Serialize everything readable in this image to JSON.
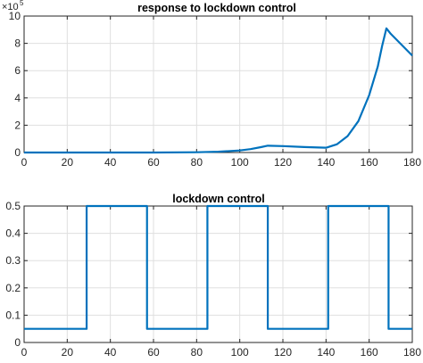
{
  "chart_data": [
    {
      "type": "line",
      "title": "response to lockdown control",
      "xlabel": "",
      "ylabel": "",
      "xlim": [
        0,
        180
      ],
      "ylim": [
        0,
        10
      ],
      "y_exponent_label": "×10",
      "y_exponent_power": "5",
      "x_ticks": [
        0,
        20,
        40,
        60,
        80,
        100,
        120,
        140,
        160,
        180
      ],
      "y_ticks": [
        0,
        2,
        4,
        6,
        8,
        10
      ],
      "x_tick_labels": [
        "0",
        "20",
        "40",
        "60",
        "80",
        "100",
        "120",
        "140",
        "160",
        "180"
      ],
      "y_tick_labels": [
        "0",
        "2",
        "4",
        "6",
        "8",
        "10"
      ],
      "grid": true,
      "line_color": "#0072BD",
      "series": [
        {
          "x": [
            0,
            20,
            40,
            60,
            80,
            90,
            100,
            105,
            110,
            113,
            120,
            130,
            140,
            145,
            150,
            155,
            160,
            164,
            166,
            168,
            170,
            175,
            180
          ],
          "y": [
            0,
            0,
            0,
            0,
            0.02,
            0.06,
            0.15,
            0.25,
            0.4,
            0.5,
            0.47,
            0.4,
            0.35,
            0.6,
            1.2,
            2.3,
            4.2,
            6.3,
            7.8,
            9.1,
            8.7,
            7.9,
            7.1
          ]
        }
      ]
    },
    {
      "type": "line",
      "title": "lockdown control",
      "xlabel": "",
      "ylabel": "",
      "xlim": [
        0,
        180
      ],
      "ylim": [
        0,
        0.5
      ],
      "x_ticks": [
        0,
        20,
        40,
        60,
        80,
        100,
        120,
        140,
        160,
        180
      ],
      "y_ticks": [
        0,
        0.1,
        0.2,
        0.3,
        0.4,
        0.5
      ],
      "x_tick_labels": [
        "0",
        "20",
        "40",
        "60",
        "80",
        "100",
        "120",
        "140",
        "160",
        "180"
      ],
      "y_tick_labels": [
        "0",
        "0.1",
        "0.2",
        "0.3",
        "0.4",
        "0.5"
      ],
      "grid": true,
      "line_color": "#0072BD",
      "series": [
        {
          "x": [
            0,
            29,
            29,
            57,
            57,
            85,
            85,
            113,
            113,
            141,
            141,
            169,
            169,
            180
          ],
          "y": [
            0.05,
            0.05,
            0.5,
            0.5,
            0.05,
            0.05,
            0.5,
            0.5,
            0.05,
            0.05,
            0.5,
            0.5,
            0.05,
            0.05
          ]
        }
      ]
    }
  ]
}
